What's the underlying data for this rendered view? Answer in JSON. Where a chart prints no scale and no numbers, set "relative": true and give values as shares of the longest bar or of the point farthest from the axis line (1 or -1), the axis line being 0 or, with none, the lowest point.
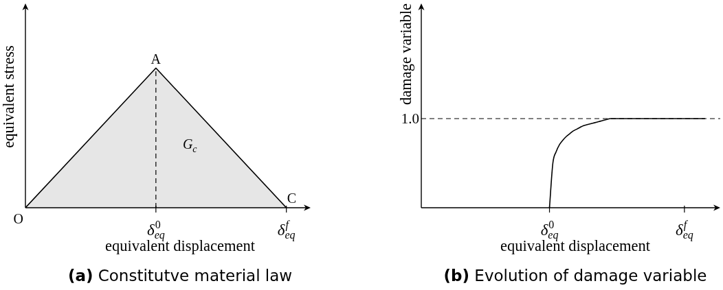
{
  "chart_data": [
    {
      "type": "area",
      "title": "(a) Constitutve material law",
      "xlabel": "equivalent displacement",
      "ylabel": "equivalent stress",
      "categories": [
        "O",
        "δ$_{eq}$$^{0}$",
        "δ$_{eq}$$^{f}$"
      ],
      "values": [
        0,
        1,
        0
      ],
      "color": "#000000",
      "relative": true,
      "ref_lines": [
        {
          "axis": "x",
          "value": "δ$_{eq}$$^{0}$",
          "line_style": "dashed",
          "color": "#000000"
        }
      ],
      "annotations": [
        {
          "text": "A",
          "x": "δ$_{eq}$$^{0}$",
          "y": 1
        },
        {
          "text": "C",
          "x": "δ$_{eq}$$^{f}$",
          "y": 0
        },
        "G$_{c}$"
      ]
    },
    {
      "type": "line",
      "title": "(b) Evolution of damage variable",
      "xlabel": "equivalent displacement",
      "ylabel": "damage variable",
      "categories": [
        null,
        null,
        null,
        null,
        null,
        null,
        null,
        null,
        null,
        null,
        null,
        null,
        null,
        null,
        null,
        null,
        null,
        null,
        null,
        null,
        null,
        null,
        null,
        null,
        null,
        null,
        null,
        null,
        null,
        null,
        null,
        null,
        null,
        null,
        null,
        null,
        null,
        null,
        "δ$_{eq}$$^{0}$",
        null,
        null,
        null,
        null,
        null,
        null,
        null,
        null,
        null,
        null,
        null,
        null,
        null,
        null,
        null,
        null,
        null,
        null,
        null,
        null,
        null,
        null,
        null,
        null,
        null,
        null,
        null,
        null,
        null,
        null,
        null,
        null,
        null,
        null,
        null,
        null,
        null,
        null,
        null,
        "δ$_{eq}$$^{f}$",
        null,
        null,
        null,
        null,
        null,
        null
      ],
      "values": [
        null,
        null,
        null,
        null,
        null,
        null,
        null,
        null,
        null,
        null,
        null,
        null,
        null,
        null,
        null,
        null,
        null,
        null,
        null,
        null,
        null,
        null,
        null,
        null,
        null,
        null,
        null,
        null,
        null,
        null,
        null,
        null,
        null,
        null,
        null,
        null,
        null,
        null,
        0,
        0.5,
        0.63,
        0.71,
        0.76,
        0.8,
        0.83,
        0.86,
        0.88,
        0.9,
        0.92,
        0.93,
        0.94,
        0.95,
        0.96,
        0.97,
        0.98,
        0.99,
        1,
        1,
        1,
        1,
        1,
        1,
        1,
        1,
        1,
        1,
        1,
        1,
        1,
        1,
        1,
        1,
        1,
        1,
        1,
        1,
        1,
        1,
        1,
        1,
        1,
        1,
        1,
        1,
        1
      ],
      "color": "#000000",
      "relative": true,
      "ref_lines": [
        {
          "axis": "y",
          "value": 1,
          "label": "1.0",
          "line_style": "dashed",
          "color": "#000000"
        }
      ]
    }
  ]
}
